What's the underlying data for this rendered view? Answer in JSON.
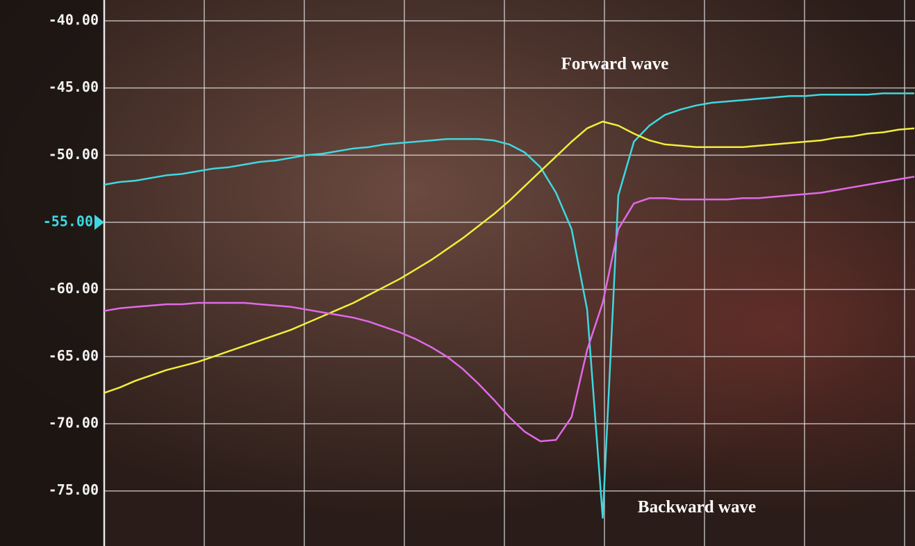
{
  "chart_data": {
    "type": "line",
    "categories": [
      null,
      null,
      null,
      null,
      null,
      null,
      null,
      null,
      null,
      null,
      null,
      null,
      null,
      null,
      null,
      null,
      null,
      null,
      null,
      null,
      null,
      null,
      null,
      null,
      null,
      null,
      null,
      null,
      null,
      null,
      null,
      null,
      null,
      null,
      null,
      null,
      null,
      null,
      null,
      null,
      null,
      null,
      null,
      null,
      null,
      null,
      null,
      null,
      null,
      null,
      null,
      null,
      null
    ],
    "series": [
      {
        "color": "#3fd8e0",
        "values": [
          -52.2,
          -52.0,
          -51.9,
          -51.7,
          -51.5,
          -51.4,
          -51.2,
          -51.0,
          -50.9,
          -50.7,
          -50.5,
          -50.4,
          -50.2,
          -50.0,
          -49.9,
          -49.7,
          -49.5,
          -49.4,
          -49.2,
          -49.1,
          -49.0,
          -48.9,
          -48.8,
          -48.8,
          -48.8,
          -48.9,
          -49.2,
          -49.8,
          -50.9,
          -52.8,
          -55.5,
          -61.5,
          -77.0,
          -53.0,
          -49.0,
          -47.8,
          -47.0,
          -46.6,
          -46.3,
          -46.1,
          -46.0,
          -45.9,
          -45.8,
          -45.7,
          -45.6,
          -45.6,
          -45.5,
          -45.5,
          -45.5,
          -45.5,
          -45.4,
          -45.4,
          -45.4
        ]
      },
      {
        "color": "#f2ee3a",
        "values": [
          -67.7,
          -67.3,
          -66.8,
          -66.4,
          -66.0,
          -65.7,
          -65.4,
          -65.0,
          -64.6,
          -64.2,
          -63.8,
          -63.4,
          -63.0,
          -62.5,
          -62.0,
          -61.5,
          -61.0,
          -60.4,
          -59.8,
          -59.2,
          -58.5,
          -57.8,
          -57.0,
          -56.2,
          -55.3,
          -54.4,
          -53.4,
          -52.3,
          -51.2,
          -50.1,
          -49.0,
          -48.0,
          -47.5,
          -47.8,
          -48.4,
          -48.9,
          -49.2,
          -49.3,
          -49.4,
          -49.4,
          -49.4,
          -49.4,
          -49.3,
          -49.2,
          -49.1,
          -49.0,
          -48.9,
          -48.7,
          -48.6,
          -48.4,
          -48.3,
          -48.1,
          -48.0
        ]
      },
      {
        "color": "#e06ae8",
        "values": [
          -61.6,
          -61.4,
          -61.3,
          -61.2,
          -61.1,
          -61.1,
          -61.0,
          -61.0,
          -61.0,
          -61.0,
          -61.1,
          -61.2,
          -61.3,
          -61.5,
          -61.7,
          -61.9,
          -62.1,
          -62.4,
          -62.8,
          -63.2,
          -63.7,
          -64.3,
          -65.0,
          -65.9,
          -67.0,
          -68.2,
          -69.5,
          -70.6,
          -71.3,
          -71.2,
          -69.5,
          -64.5,
          -61.0,
          -55.5,
          -53.6,
          -53.2,
          -53.2,
          -53.3,
          -53.3,
          -53.3,
          -53.3,
          -53.2,
          -53.2,
          -53.1,
          -53.0,
          -52.9,
          -52.8,
          -52.6,
          -52.4,
          -52.2,
          -52.0,
          -51.8,
          -51.6
        ]
      }
    ],
    "ylim": [
      -79.1,
      -38.45
    ],
    "yticks": [
      {
        "value": -40,
        "label": "-40.00"
      },
      {
        "value": -45,
        "label": "-45.00"
      },
      {
        "value": -50,
        "label": "-50.00"
      },
      {
        "value": -55,
        "label": "-55.00"
      },
      {
        "value": -60,
        "label": "-60.00"
      },
      {
        "value": -65,
        "label": "-65.00"
      },
      {
        "value": -70,
        "label": "-70.00"
      },
      {
        "value": -75,
        "label": "-75.00"
      }
    ],
    "grid": true,
    "reference_level": -55,
    "reference_color": "#3fd8e0",
    "annotations": [
      "Forward wave",
      "Backward wave"
    ]
  }
}
